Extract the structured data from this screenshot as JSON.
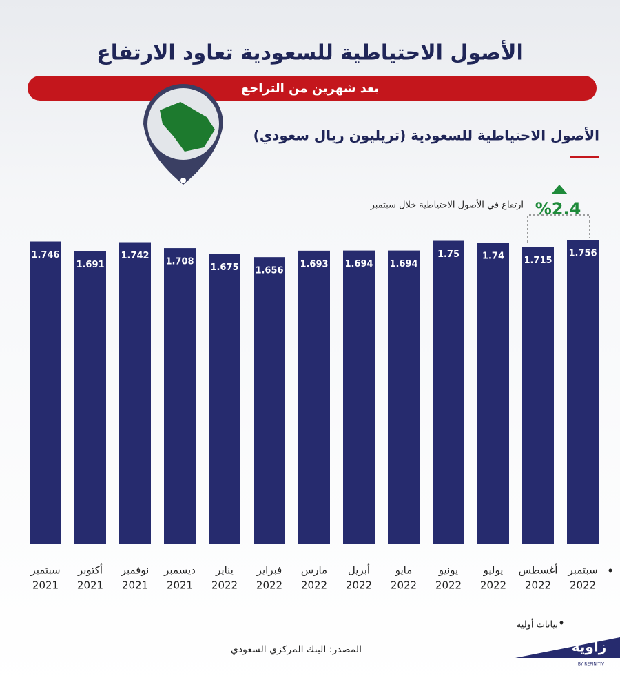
{
  "chart_data": {
    "type": "bar",
    "title": "الأصول الاحتياطية للسعودية تعاود الارتفاع",
    "subtitle": "بعد شهرين من التراجع",
    "chart_title": "الأصول الاحتياطية للسعودية (تريليون ريال سعودي)",
    "annotation": "ارتفاع في الأصول الاحتياطية خلال سبتمبر",
    "annotation_value": "%2.4",
    "note": "بيانات أولية",
    "source": "المصدر: البنك المركزي السعودي",
    "logo": "زاوية",
    "logo_sub": "BY REFINITIV",
    "categories": [
      [
        "سبتمبر",
        "2021"
      ],
      [
        "أكتوبر",
        "2021"
      ],
      [
        "نوفمبر",
        "2021"
      ],
      [
        "ديسمبر",
        "2021"
      ],
      [
        "يناير",
        "2022"
      ],
      [
        "فبراير",
        "2022"
      ],
      [
        "مارس",
        "2022"
      ],
      [
        "أبريل",
        "2022"
      ],
      [
        "مايو",
        "2022"
      ],
      [
        "يونيو",
        "2022"
      ],
      [
        "يوليو",
        "2022"
      ],
      [
        "أغسطس",
        "2022"
      ],
      [
        "سبتمبر",
        "2022"
      ]
    ],
    "values": [
      1.746,
      1.691,
      1.742,
      1.708,
      1.675,
      1.656,
      1.693,
      1.694,
      1.694,
      1.75,
      1.74,
      1.715,
      1.756
    ],
    "color": "#262b6e"
  }
}
